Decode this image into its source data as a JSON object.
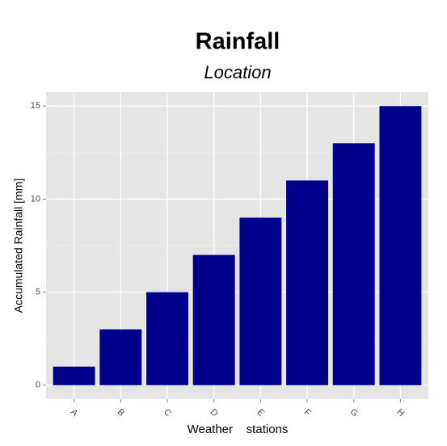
{
  "chart_data": {
    "type": "bar",
    "title": "Rainfall",
    "subtitle": "Location",
    "x_label": "Weather    stations",
    "y_label": "Accumulated Rainfall [mm]",
    "categories": [
      "A",
      "B",
      "C",
      "D",
      "E",
      "F",
      "G",
      "H"
    ],
    "values": [
      1,
      3,
      5,
      7,
      9,
      11,
      13,
      15
    ],
    "color": "#00008B",
    "ylim": [
      -0.75,
      15.75
    ],
    "yticks": [
      0,
      5,
      10,
      15
    ],
    "grid": true
  }
}
